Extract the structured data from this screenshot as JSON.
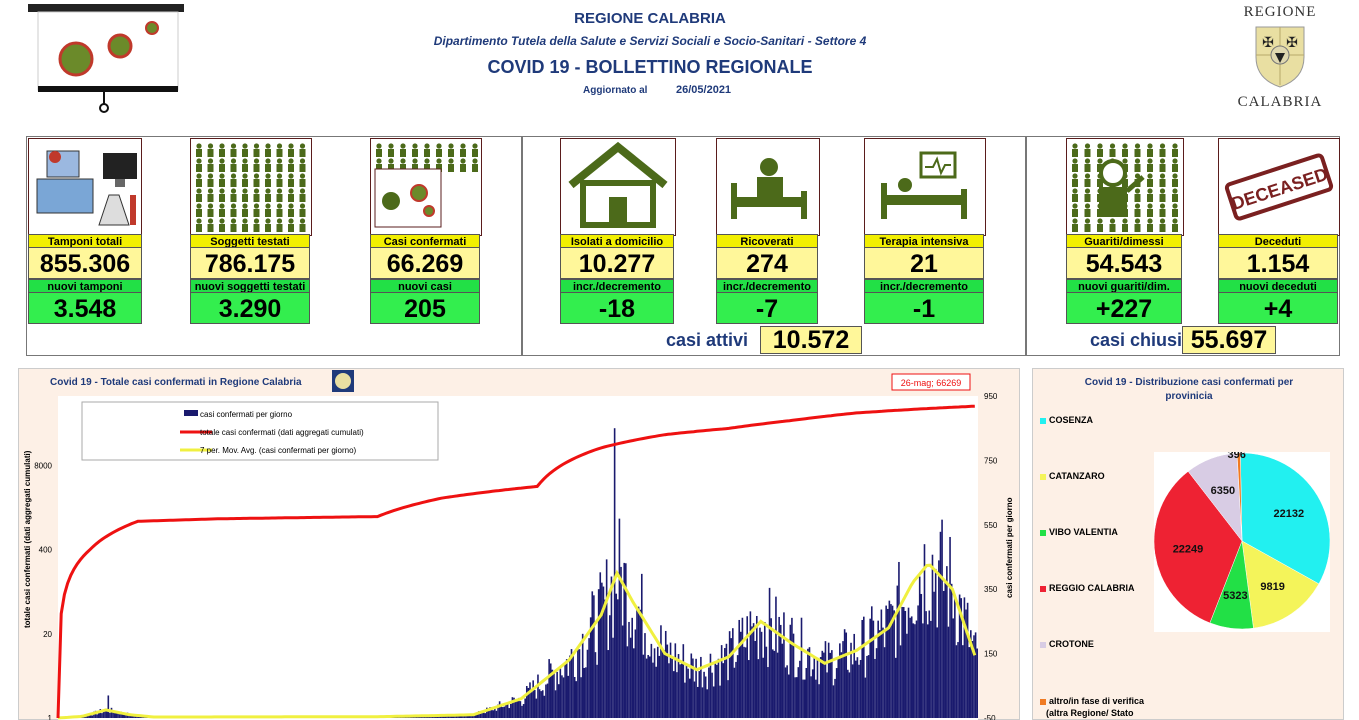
{
  "header": {
    "region": "REGIONE CALABRIA",
    "department": "Dipartimento Tutela della Salute e Servizi Sociali e Socio-Sanitari - Settore 4",
    "bulletin": "COVID 19 - BOLLETTINO REGIONALE",
    "updated_label": "Aggiornato al",
    "updated_date": "26/05/2021",
    "logo_top": "REGIONE",
    "logo_bottom": "CALABRIA"
  },
  "cards": [
    {
      "id": "tamponi",
      "label": "Tamponi totali",
      "value": "855.306",
      "sub_label": "nuovi tamponi",
      "sub_value": "3.548"
    },
    {
      "id": "soggetti",
      "label": "Soggetti testati",
      "value": "786.175",
      "sub_label": "nuovi soggetti testati",
      "sub_value": "3.290"
    },
    {
      "id": "casi",
      "label": "Casi confermati",
      "value": "66.269",
      "sub_label": "nuovi casi",
      "sub_value": "205"
    },
    {
      "id": "isolati",
      "label": "Isolati a domicilio",
      "value": "10.277",
      "sub_label": "incr./decremento",
      "sub_value": "-18"
    },
    {
      "id": "ricoverati",
      "label": "Ricoverati",
      "value": "274",
      "sub_label": "incr./decremento",
      "sub_value": "-7"
    },
    {
      "id": "terapia",
      "label": "Terapia intensiva",
      "value": "21",
      "sub_label": "incr./decremento",
      "sub_value": "-1"
    },
    {
      "id": "guariti",
      "label": "Guariti/dimessi",
      "value": "54.543",
      "sub_label": "nuovi guariti/dim.",
      "sub_value": "+227"
    },
    {
      "id": "deceduti",
      "label": "Deceduti",
      "value": "1.154",
      "sub_label": "nuovi deceduti",
      "sub_value": "+4"
    }
  ],
  "deceased_stamp": "DECEASED",
  "totals": {
    "attivi_label": "casi attivi",
    "attivi_value": "10.572",
    "chiusi_label": "casi chiusi",
    "chiusi_value": "55.697"
  },
  "colors": {
    "cumulative": "#ee1111",
    "daily": "#1a1a6e",
    "avg": "#f0f040",
    "title": "#1f3a7a"
  },
  "chart_data": [
    {
      "type": "bar+line",
      "title": "Covid 19 - Totale casi confermati in Regione Calabria",
      "ylabel_left": "totale casi confermati (dati aggregati cumulati)",
      "ylabel_right": "casi confermati per giorno",
      "left_ticks": [
        "1",
        "20",
        "400",
        "8000"
      ],
      "right_ticks": [
        "-50",
        "150",
        "350",
        "550",
        "750",
        "950"
      ],
      "right_ylim": [
        -50,
        950
      ],
      "left_scale": "log",
      "annotation": "26-mag; 66269",
      "legend": [
        "casi confermati per giorno",
        "totale casi confermati (dati aggregati cumulati)",
        "7 per. Mov. Avg. (casi confermati per giorno)"
      ],
      "legend_position": "top-left",
      "cumulative_keypoints": [
        [
          0,
          1
        ],
        [
          20,
          400
        ],
        [
          50,
          1100
        ],
        [
          100,
          1200
        ],
        [
          200,
          1300
        ],
        [
          240,
          2500
        ],
        [
          300,
          3800
        ],
        [
          340,
          15000
        ],
        [
          380,
          24000
        ],
        [
          420,
          30000
        ],
        [
          460,
          40000
        ],
        [
          500,
          52000
        ],
        [
          540,
          60000
        ],
        [
          575,
          66269
        ]
      ],
      "daily_smoothed_keypoints": [
        [
          0,
          0
        ],
        [
          15,
          5
        ],
        [
          30,
          25
        ],
        [
          45,
          10
        ],
        [
          60,
          3
        ],
        [
          200,
          4
        ],
        [
          260,
          10
        ],
        [
          290,
          60
        ],
        [
          320,
          180
        ],
        [
          340,
          320
        ],
        [
          350,
          450
        ],
        [
          360,
          360
        ],
        [
          380,
          200
        ],
        [
          400,
          150
        ],
        [
          420,
          190
        ],
        [
          440,
          300
        ],
        [
          460,
          230
        ],
        [
          480,
          170
        ],
        [
          500,
          210
        ],
        [
          520,
          280
        ],
        [
          535,
          420
        ],
        [
          545,
          480
        ],
        [
          560,
          400
        ],
        [
          575,
          180
        ]
      ],
      "x_days": 576
    },
    {
      "type": "pie",
      "title": "Covid 19 - Distribuzione casi confermati per provinicia",
      "categories": [
        "COSENZA",
        "CATANZARO",
        "VIBO VALENTIA",
        "REGGIO CALABRIA",
        "CROTONE",
        "altro/in fase di verifica (altra Regione/ Stato"
      ],
      "legend_lines": [
        [
          "COSENZA"
        ],
        [
          "CATANZARO"
        ],
        [
          "VIBO VALENTIA"
        ],
        [
          "REGGIO CALABRIA"
        ],
        [
          "CROTONE"
        ],
        [
          "altro/in fase di verifica",
          "(altra Regione/ Stato"
        ]
      ],
      "values": [
        22132,
        9819,
        5323,
        22249,
        6350,
        396
      ],
      "colors": [
        "#22f0f0",
        "#f4f45a",
        "#22e046",
        "#ee2233",
        "#d8cce4",
        "#f07a22"
      ]
    }
  ]
}
